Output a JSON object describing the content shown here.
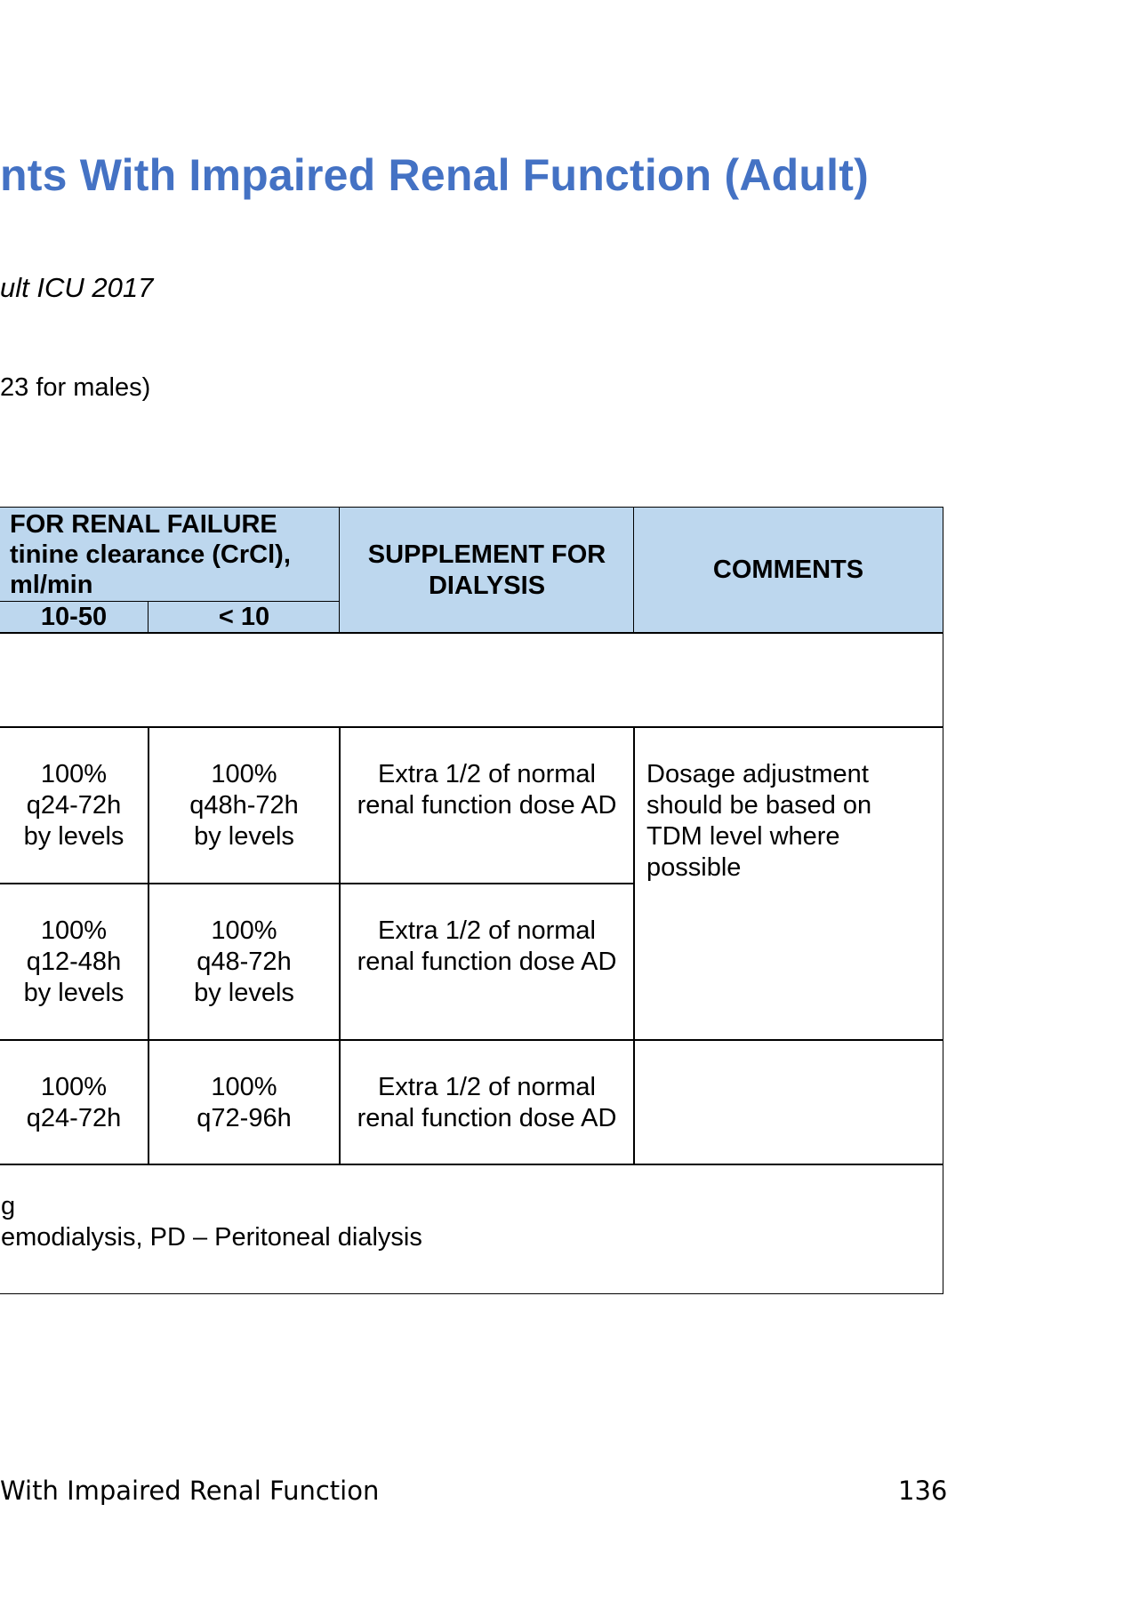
{
  "title": "nts With Impaired Renal Function (Adult)",
  "subtitle": "ult ICU 2017",
  "note": "23 for males)",
  "table": {
    "header_group": "FOR RENAL FAILURE\ntinine clearance (CrCl),\nml/min",
    "col_10_50": "10-50",
    "col_lt10": "< 10",
    "col_supplement": "SUPPLEMENT FOR\nDIALYSIS",
    "col_comments": "COMMENTS",
    "rows": [
      {
        "c10_50": "100%\nq24-72h\nby levels",
        "lt10": "100%\nq48h-72h\nby levels",
        "supplement": "Extra 1/2 of normal\nrenal function dose AD"
      },
      {
        "c10_50": "100%\nq12-48h\nby levels",
        "lt10": "100%\nq48-72h\nby levels",
        "supplement": "Extra 1/2 of normal\nrenal function dose AD"
      },
      {
        "c10_50": "100%\nq24-72h",
        "lt10": "100%\nq72-96h",
        "supplement": "Extra 1/2 of normal\nrenal function dose AD"
      }
    ],
    "comment_merged": "Dosage adjustment\nshould be based on\nTDM level where\npossible",
    "footnote": "g\nemodialysis, PD – Peritoneal dialysis"
  },
  "footer": {
    "left": "With Impaired Renal Function",
    "page_number": "136"
  }
}
